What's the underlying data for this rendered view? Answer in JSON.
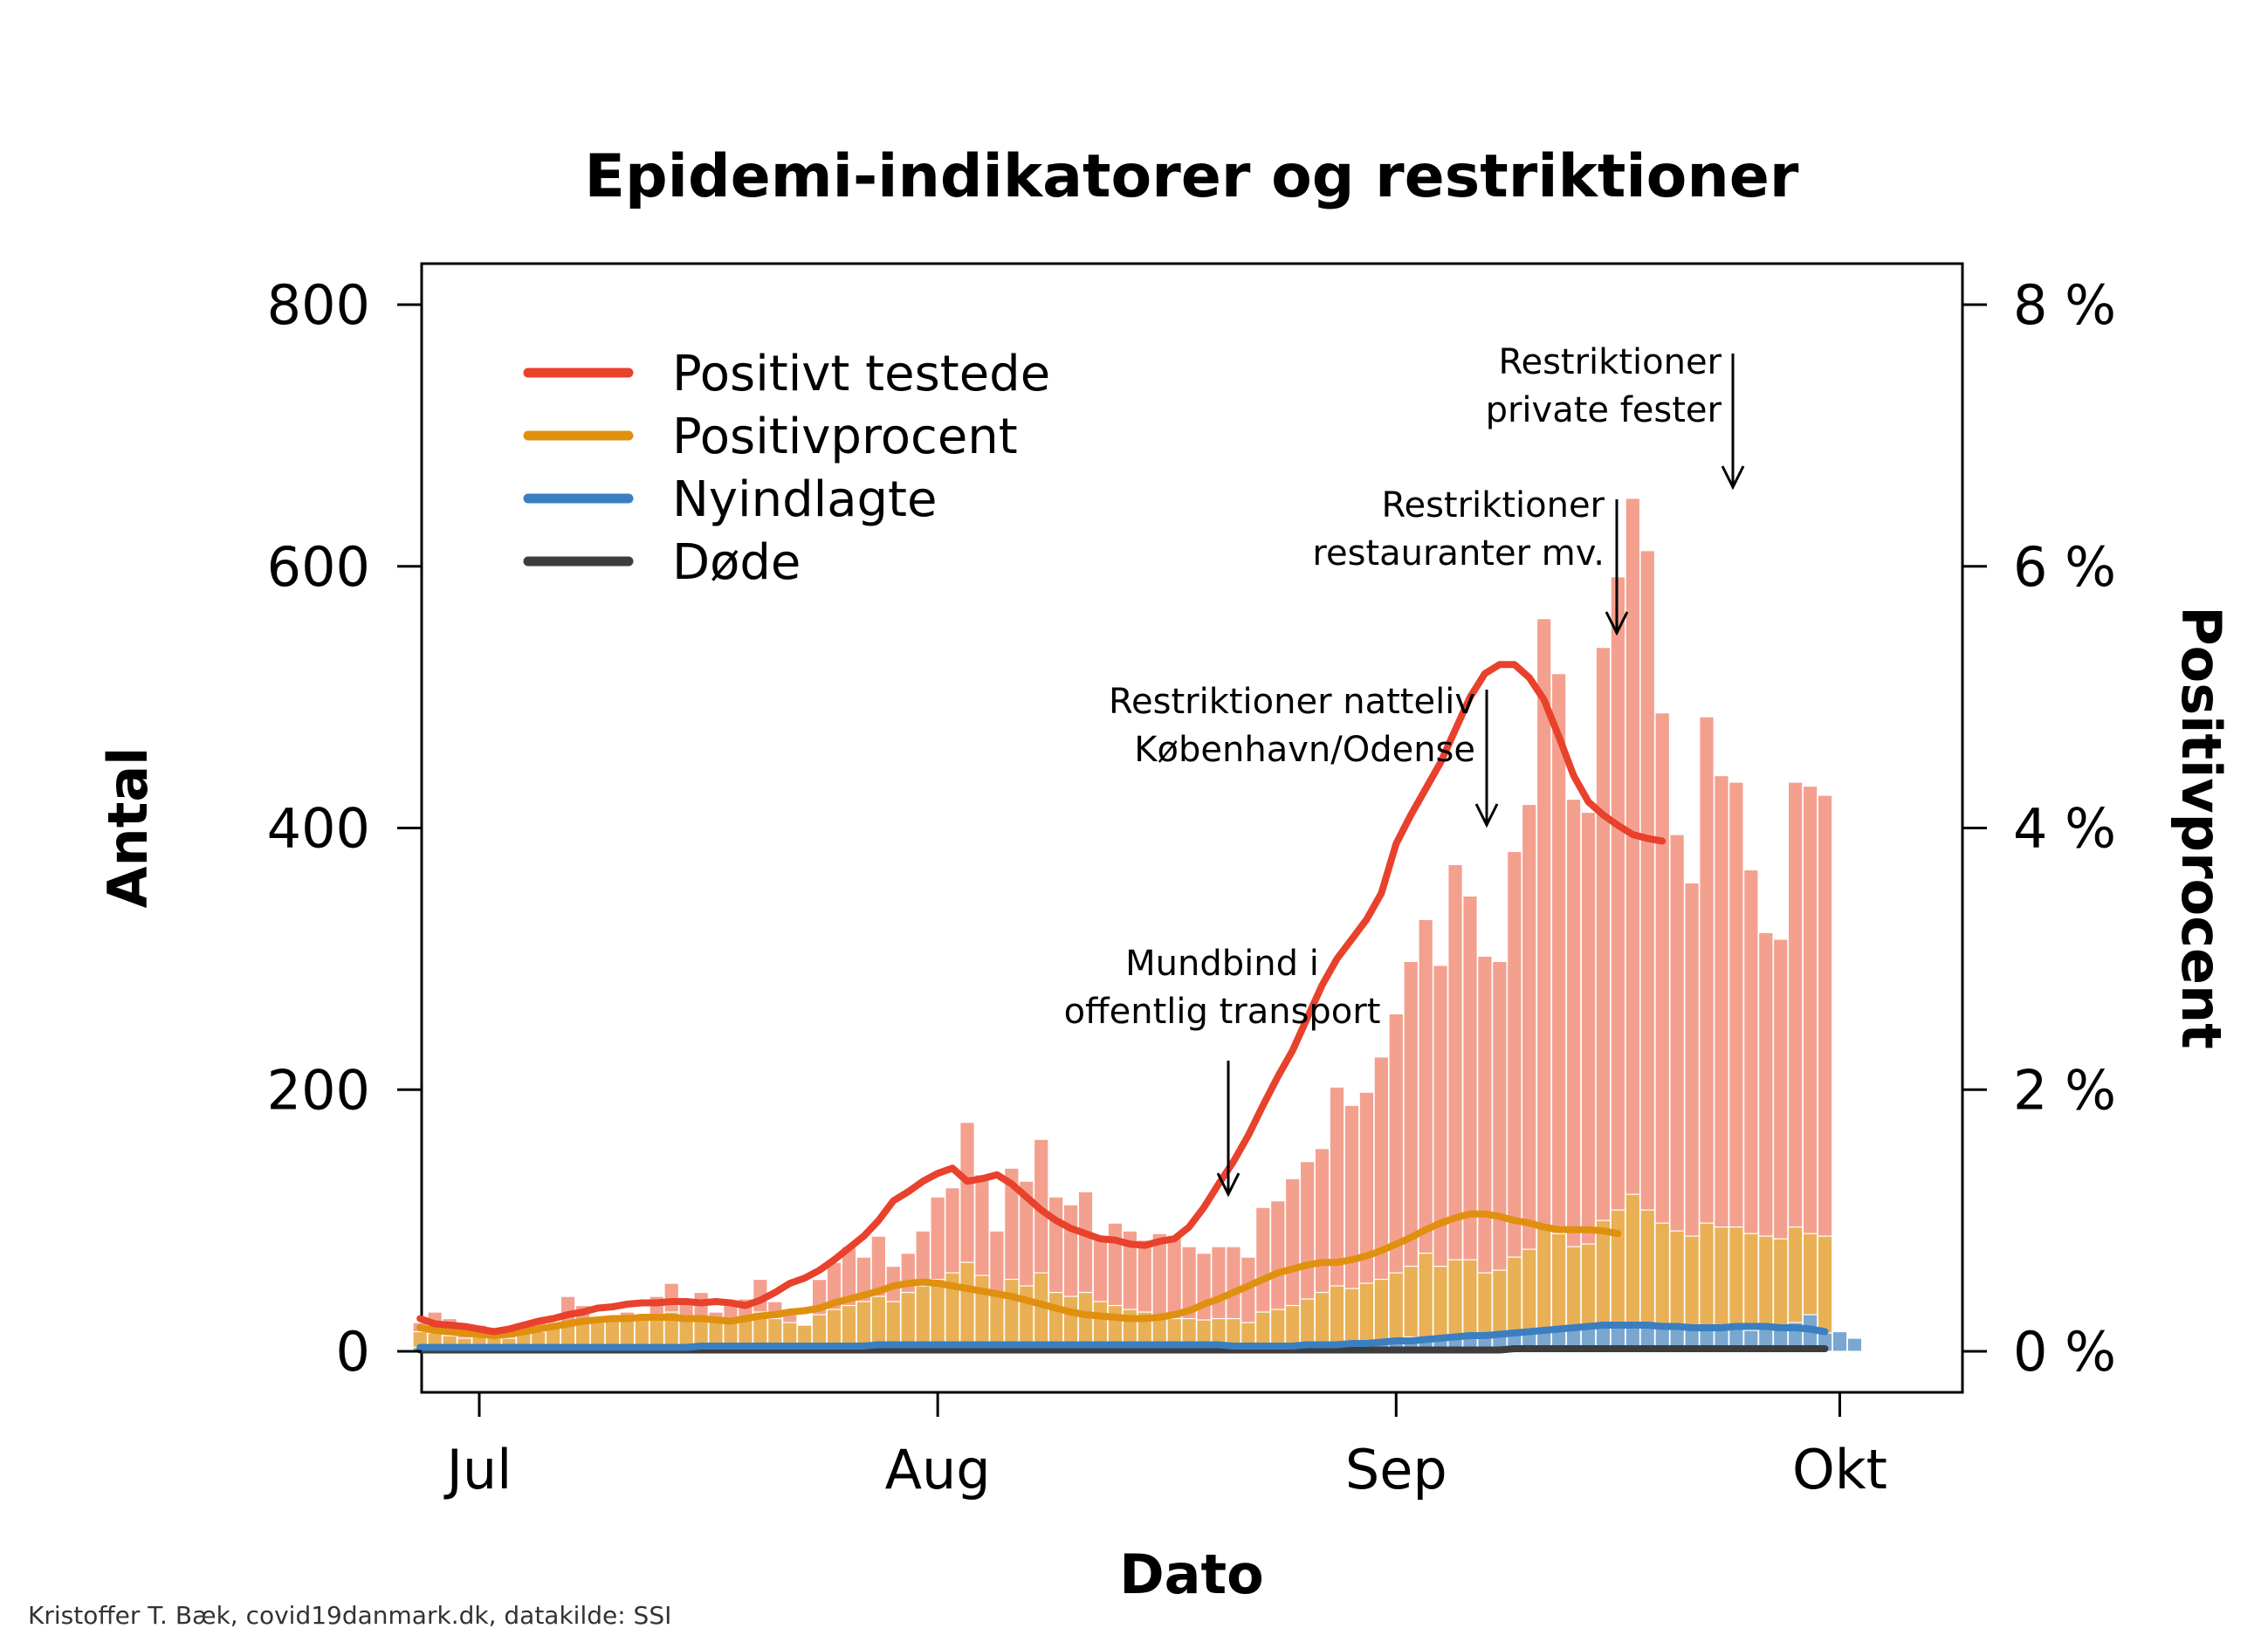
{
  "chart_data": {
    "type": "bar",
    "title": "Epidemi-indikatorer og restriktioner",
    "xlabel": "Dato",
    "ylabel": "Antal",
    "ylabel_right": "Positivprocent",
    "ylim": [
      0,
      800
    ],
    "ylim_right": [
      0,
      8
    ],
    "yticks": [
      "0",
      "200",
      "400",
      "600",
      "800"
    ],
    "yticks_right": [
      "0 %",
      "2 %",
      "4 %",
      "6 %",
      "8 %"
    ],
    "xticks": [
      {
        "label": "Jul",
        "day": 1
      },
      {
        "label": "Aug",
        "day": 32
      },
      {
        "label": "Sep",
        "day": 63
      },
      {
        "label": "Okt",
        "day": 93
      }
    ],
    "x_start_day": -3,
    "credit": "Kristoffer T. Bæk, covid19danmark.dk, datakilde: SSI",
    "legend": [
      {
        "label": "Positivt testede",
        "color": "#e8412c"
      },
      {
        "label": "Positivprocent",
        "color": "#e0900f"
      },
      {
        "label": "Nyindlagte",
        "color": "#3a7fc0"
      },
      {
        "label": "Døde",
        "color": "#3d3d3d"
      }
    ],
    "colors": {
      "positive_bar": "#f4a08f",
      "percent_bar": "#e9b055",
      "admitted_bar": "#7aa7d0",
      "positive_line": "#e8412c",
      "percent_line": "#e0900f",
      "admitted_line": "#3a7fc0",
      "deaths_line": "#3d3d3d"
    },
    "annotations": [
      {
        "lines": [
          "Mundbind i",
          "offentlig transport"
        ],
        "day": 52
      },
      {
        "lines": [
          "Restriktioner natteliv",
          "København/Odense"
        ],
        "day": 71
      },
      {
        "lines": [
          "Restriktioner",
          "restauranter mv."
        ],
        "day": 80
      },
      {
        "lines": [
          "Restriktioner",
          "private fester"
        ],
        "day": 88
      }
    ],
    "series": [
      {
        "name": "Positivt testede",
        "kind": "bars",
        "start_day": -3,
        "values": [
          22,
          30,
          25,
          18,
          20,
          15,
          12,
          20,
          22,
          18,
          42,
          35,
          20,
          25,
          30,
          28,
          42,
          52,
          38,
          45,
          30,
          35,
          40,
          55,
          38,
          28,
          20,
          55,
          68,
          80,
          72,
          88,
          65,
          75,
          92,
          118,
          125,
          175,
          135,
          92,
          140,
          130,
          162,
          118,
          112,
          122,
          85,
          98,
          92,
          85,
          90,
          88,
          80,
          75,
          80,
          80,
          72,
          110,
          115,
          132,
          145,
          155,
          202,
          188,
          198,
          225,
          258,
          298,
          330,
          295,
          372,
          348,
          302,
          298,
          382,
          418,
          560,
          518,
          422,
          412,
          538,
          592,
          652,
          612,
          488,
          395,
          358,
          485,
          440,
          435,
          368,
          320,
          315,
          435,
          432,
          425
        ]
      },
      {
        "name": "Positivt testede (gennemsnit)",
        "kind": "line",
        "start_day": -3,
        "values": [
          25,
          21,
          20,
          19,
          17,
          15,
          17,
          20,
          23,
          25,
          28,
          30,
          33,
          34,
          36,
          37,
          37,
          38,
          38,
          37,
          38,
          37,
          35,
          39,
          45,
          52,
          56,
          62,
          70,
          79,
          88,
          100,
          115,
          122,
          130,
          136,
          140,
          130,
          132,
          135,
          128,
          118,
          108,
          100,
          94,
          90,
          86,
          85,
          82,
          81,
          84,
          86,
          95,
          110,
          128,
          145,
          165,
          188,
          210,
          230,
          255,
          280,
          300,
          315,
          330,
          350,
          388,
          410,
          430,
          450,
          475,
          500,
          518,
          525,
          525,
          515,
          498,
          470,
          440,
          420,
          410,
          402,
          395,
          392,
          390
        ]
      },
      {
        "name": "Positivprocent (søjler)",
        "kind": "bars",
        "start_day": -3,
        "values": [
          0.15,
          0.14,
          0.12,
          0.1,
          0.12,
          0.1,
          0.1,
          0.14,
          0.15,
          0.18,
          0.2,
          0.22,
          0.22,
          0.25,
          0.24,
          0.28,
          0.28,
          0.3,
          0.27,
          0.25,
          0.24,
          0.22,
          0.25,
          0.3,
          0.25,
          0.22,
          0.2,
          0.28,
          0.32,
          0.35,
          0.38,
          0.42,
          0.38,
          0.45,
          0.5,
          0.55,
          0.6,
          0.68,
          0.58,
          0.45,
          0.55,
          0.5,
          0.6,
          0.45,
          0.42,
          0.45,
          0.38,
          0.35,
          0.32,
          0.3,
          0.28,
          0.25,
          0.25,
          0.24,
          0.25,
          0.25,
          0.22,
          0.3,
          0.32,
          0.35,
          0.4,
          0.45,
          0.5,
          0.48,
          0.52,
          0.55,
          0.6,
          0.65,
          0.75,
          0.65,
          0.7,
          0.7,
          0.6,
          0.62,
          0.72,
          0.78,
          0.95,
          0.9,
          0.8,
          0.82,
          1.0,
          1.08,
          1.2,
          1.08,
          0.98,
          0.92,
          0.88,
          0.98,
          0.95,
          0.95,
          0.9,
          0.88,
          0.86,
          0.95,
          0.9,
          0.88
        ]
      },
      {
        "name": "Positivprocent",
        "kind": "line",
        "start_day": -3,
        "values": [
          0.18,
          0.16,
          0.15,
          0.14,
          0.13,
          0.12,
          0.13,
          0.15,
          0.17,
          0.19,
          0.21,
          0.23,
          0.24,
          0.25,
          0.25,
          0.26,
          0.26,
          0.26,
          0.25,
          0.25,
          0.24,
          0.23,
          0.25,
          0.27,
          0.28,
          0.3,
          0.31,
          0.33,
          0.37,
          0.4,
          0.43,
          0.46,
          0.5,
          0.52,
          0.53,
          0.52,
          0.5,
          0.48,
          0.46,
          0.44,
          0.42,
          0.39,
          0.36,
          0.33,
          0.3,
          0.28,
          0.27,
          0.26,
          0.25,
          0.25,
          0.26,
          0.28,
          0.31,
          0.36,
          0.4,
          0.45,
          0.5,
          0.55,
          0.6,
          0.63,
          0.66,
          0.68,
          0.68,
          0.7,
          0.73,
          0.77,
          0.82,
          0.87,
          0.93,
          0.98,
          1.02,
          1.05,
          1.05,
          1.03,
          1.0,
          0.98,
          0.95,
          0.93,
          0.93,
          0.93,
          0.92,
          0.9
        ]
      },
      {
        "name": "Nyindlagte (søjler)",
        "kind": "bars",
        "start_day": -3,
        "values": [
          3,
          4,
          3,
          3,
          2,
          3,
          2,
          3,
          3,
          4,
          3,
          3,
          4,
          3,
          3,
          4,
          3,
          3,
          4,
          4,
          3,
          3,
          4,
          4,
          3,
          4,
          3,
          4,
          5,
          4,
          5,
          5,
          4,
          5,
          6,
          5,
          6,
          5,
          6,
          5,
          5,
          5,
          6,
          5,
          5,
          5,
          4,
          5,
          4,
          5,
          5,
          4,
          5,
          4,
          4,
          5,
          4,
          5,
          5,
          6,
          6,
          7,
          7,
          8,
          8,
          9,
          10,
          11,
          10,
          12,
          13,
          12,
          14,
          13,
          15,
          16,
          18,
          17,
          18,
          19,
          20,
          22,
          21,
          20,
          19,
          18,
          17,
          18,
          20,
          17,
          16,
          18,
          20,
          22,
          28,
          14,
          15,
          10
        ]
      },
      {
        "name": "Nyindlagte",
        "kind": "line",
        "start_day": -3,
        "values": [
          3,
          3,
          3,
          3,
          3,
          3,
          3,
          3,
          3,
          3,
          3,
          3,
          3,
          3,
          3,
          3,
          3,
          3,
          3,
          4,
          4,
          4,
          4,
          4,
          4,
          4,
          4,
          4,
          4,
          4,
          4,
          5,
          5,
          5,
          5,
          5,
          5,
          5,
          5,
          5,
          5,
          5,
          5,
          5,
          5,
          5,
          5,
          5,
          5,
          5,
          5,
          5,
          5,
          5,
          5,
          4,
          4,
          4,
          4,
          4,
          5,
          5,
          5,
          6,
          6,
          7,
          8,
          8,
          9,
          10,
          11,
          12,
          12,
          13,
          14,
          15,
          16,
          17,
          18,
          19,
          20,
          20,
          20,
          20,
          19,
          19,
          18,
          18,
          18,
          19,
          19,
          19,
          18,
          18,
          17,
          15
        ]
      },
      {
        "name": "Døde",
        "kind": "line",
        "start_day": -3,
        "values": [
          1,
          1,
          1,
          1,
          1,
          1,
          1,
          1,
          1,
          1,
          1,
          1,
          1,
          1,
          1,
          1,
          1,
          1,
          1,
          1,
          1,
          1,
          1,
          1,
          1,
          1,
          1,
          1,
          1,
          1,
          1,
          1,
          1,
          1,
          1,
          1,
          1,
          1,
          1,
          1,
          1,
          1,
          1,
          1,
          1,
          1,
          1,
          1,
          1,
          1,
          1,
          1,
          1,
          1,
          1,
          1,
          1,
          1,
          1,
          1,
          1,
          1,
          1,
          1,
          1,
          1,
          1,
          1,
          1,
          1,
          1,
          1,
          1,
          1,
          2,
          2,
          2,
          2,
          2,
          2,
          2,
          2,
          2,
          2,
          2,
          2,
          2,
          2,
          2,
          2,
          2,
          2,
          2,
          2,
          2,
          2
        ]
      }
    ]
  }
}
